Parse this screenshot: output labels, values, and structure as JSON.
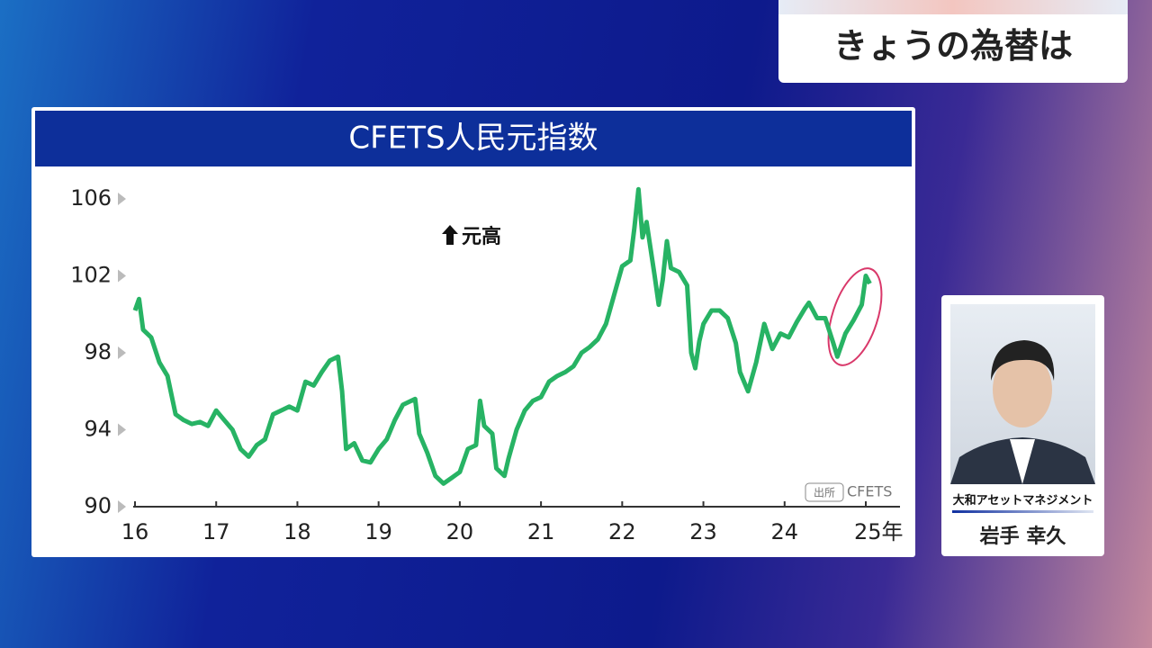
{
  "header": {
    "title": "きょうの為替は"
  },
  "presenter": {
    "organization": "大和アセットマネジメント",
    "name": "岩手 幸久"
  },
  "chart_data": {
    "type": "line",
    "title": "CFETS人民元指数",
    "annotation": "元高",
    "source_label": "出所",
    "source": "CFETS",
    "x": [
      16.0,
      16.05,
      16.1,
      16.2,
      16.3,
      16.4,
      16.5,
      16.6,
      16.7,
      16.8,
      16.9,
      17.0,
      17.1,
      17.2,
      17.3,
      17.4,
      17.5,
      17.6,
      17.7,
      17.8,
      17.9,
      18.0,
      18.1,
      18.2,
      18.3,
      18.4,
      18.5,
      18.55,
      18.6,
      18.7,
      18.8,
      18.9,
      19.0,
      19.1,
      19.2,
      19.3,
      19.4,
      19.45,
      19.5,
      19.6,
      19.7,
      19.8,
      19.9,
      20.0,
      20.1,
      20.2,
      20.25,
      20.3,
      20.4,
      20.45,
      20.55,
      20.6,
      20.7,
      20.8,
      20.9,
      21.0,
      21.1,
      21.2,
      21.3,
      21.4,
      21.5,
      21.6,
      21.7,
      21.8,
      21.9,
      22.0,
      22.1,
      22.15,
      22.2,
      22.25,
      22.3,
      22.4,
      22.45,
      22.5,
      22.55,
      22.6,
      22.7,
      22.8,
      22.85,
      22.9,
      22.95,
      23.0,
      23.1,
      23.2,
      23.3,
      23.4,
      23.45,
      23.5,
      23.55,
      23.65,
      23.75,
      23.85,
      23.95,
      24.05,
      24.15,
      24.25,
      24.3,
      24.4,
      24.5,
      24.6,
      24.65,
      24.75,
      24.85,
      24.95,
      25.0,
      25.05
    ],
    "series": [
      {
        "name": "CFETS人民元指数",
        "color": "#27b364",
        "values": [
          100.2,
          100.8,
          99.2,
          98.8,
          97.5,
          96.8,
          94.8,
          94.5,
          94.3,
          94.4,
          94.2,
          95.0,
          94.5,
          94.0,
          93.0,
          92.6,
          93.2,
          93.5,
          94.8,
          95.0,
          95.2,
          95.0,
          96.5,
          96.3,
          97.0,
          97.6,
          97.8,
          96.0,
          93.0,
          93.3,
          92.4,
          92.3,
          93.0,
          93.5,
          94.5,
          95.3,
          95.5,
          95.6,
          93.8,
          92.8,
          91.6,
          91.2,
          91.5,
          91.8,
          93.0,
          93.2,
          95.5,
          94.2,
          93.8,
          92.0,
          91.6,
          92.5,
          94.0,
          95.0,
          95.5,
          95.7,
          96.5,
          96.8,
          97.0,
          97.3,
          98.0,
          98.3,
          98.7,
          99.5,
          101.0,
          102.5,
          102.8,
          104.5,
          106.5,
          104.0,
          104.8,
          102.0,
          100.5,
          101.8,
          103.8,
          102.4,
          102.2,
          101.5,
          98.0,
          97.2,
          98.6,
          99.5,
          100.2,
          100.2,
          99.8,
          98.5,
          97.0,
          96.5,
          96.0,
          97.5,
          99.5,
          98.2,
          99.0,
          98.8,
          99.6,
          100.3,
          100.6,
          99.8,
          99.8,
          98.5,
          97.8,
          99.0,
          99.7,
          100.5,
          102.0,
          101.6
        ]
      }
    ],
    "xlim": [
      16,
      25.4
    ],
    "xticks": [
      16,
      17,
      18,
      19,
      20,
      21,
      22,
      23,
      24,
      {
        "value": 25,
        "label": "25年"
      }
    ],
    "ylim": [
      90,
      107
    ],
    "yticks": [
      90,
      94,
      98,
      102,
      106
    ],
    "grid": false
  }
}
